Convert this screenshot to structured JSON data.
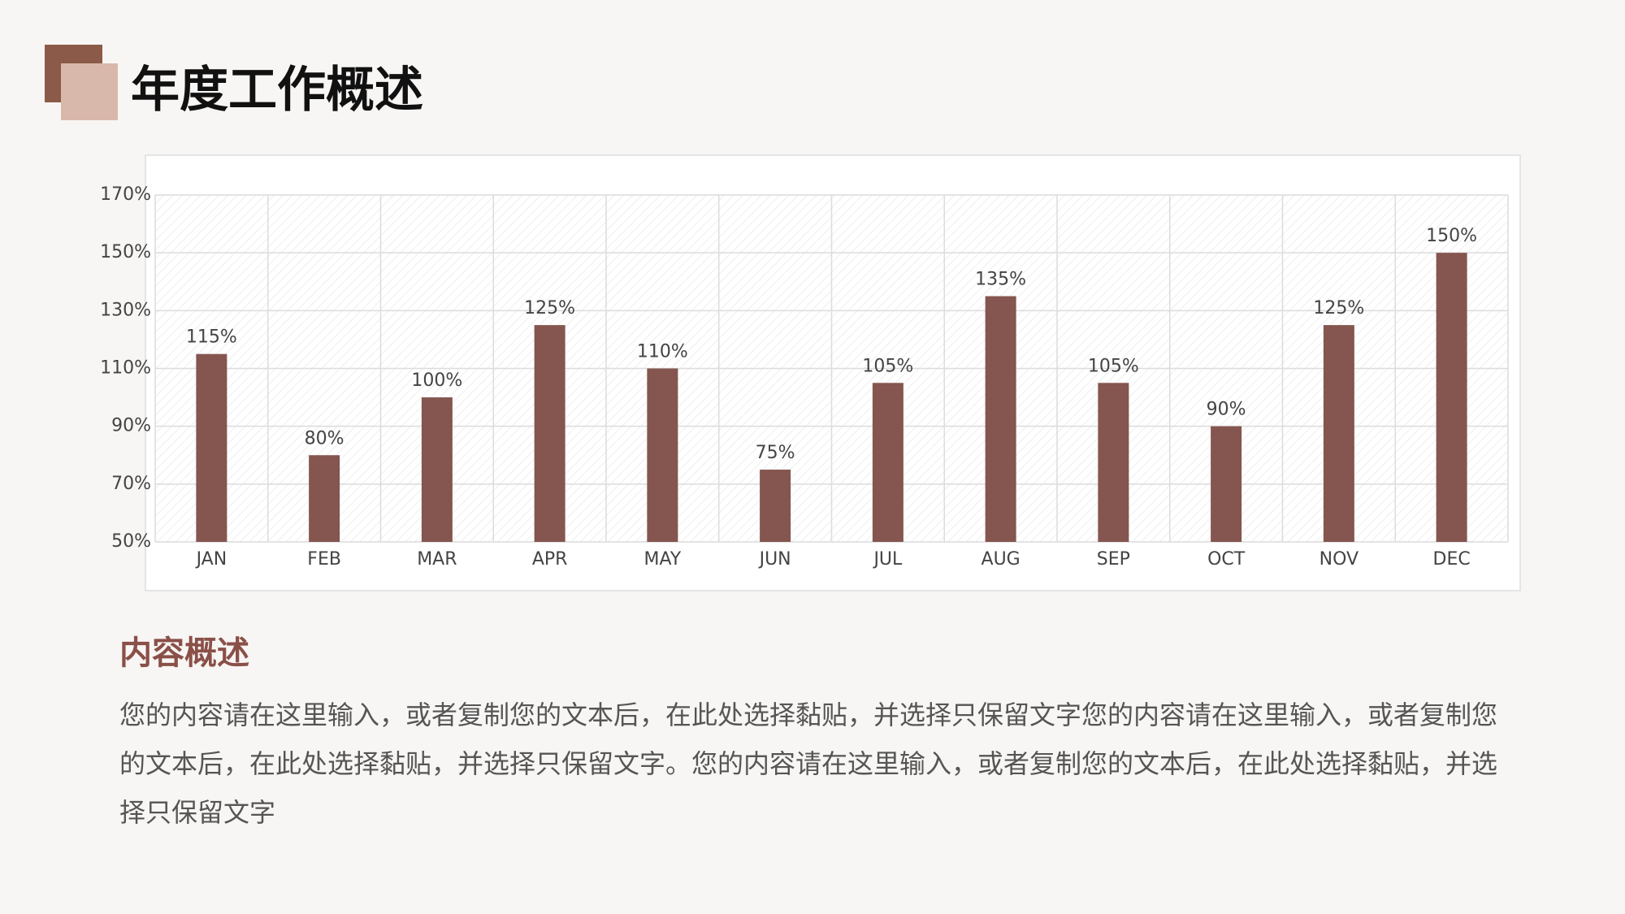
{
  "title": "年度工作概述",
  "chart_data": {
    "type": "bar",
    "categories": [
      "JAN",
      "FEB",
      "MAR",
      "APR",
      "MAY",
      "JUN",
      "JUL",
      "AUG",
      "SEP",
      "OCT",
      "NOV",
      "DEC"
    ],
    "values": [
      115,
      80,
      100,
      125,
      110,
      75,
      105,
      135,
      105,
      90,
      125,
      150
    ],
    "value_labels": [
      "115%",
      "80%",
      "100%",
      "125%",
      "110%",
      "75%",
      "105%",
      "135%",
      "105%",
      "90%",
      "125%",
      "150%"
    ],
    "color": "#85554f",
    "ylim": [
      50,
      170
    ],
    "yticks": [
      {
        "value": 50,
        "label": "50%"
      },
      {
        "value": 70,
        "label": "70%"
      },
      {
        "value": 90,
        "label": "90%"
      },
      {
        "value": 110,
        "label": "110%"
      },
      {
        "value": 130,
        "label": "130%"
      },
      {
        "value": 150,
        "label": "150%"
      },
      {
        "value": 170,
        "label": "170%"
      }
    ],
    "grid": true
  },
  "section": {
    "heading": "内容概述",
    "body": "您的内容请在这里输入，或者复制您的文本后，在此处选择黏贴，并选择只保留文字您的内容请在这里输入，或者复制您的文本后，在此处选择黏贴，并选择只保留文字。您的内容请在这里输入，或者复制您的文本后，在此处选择黏贴，并选择只保留文字"
  }
}
